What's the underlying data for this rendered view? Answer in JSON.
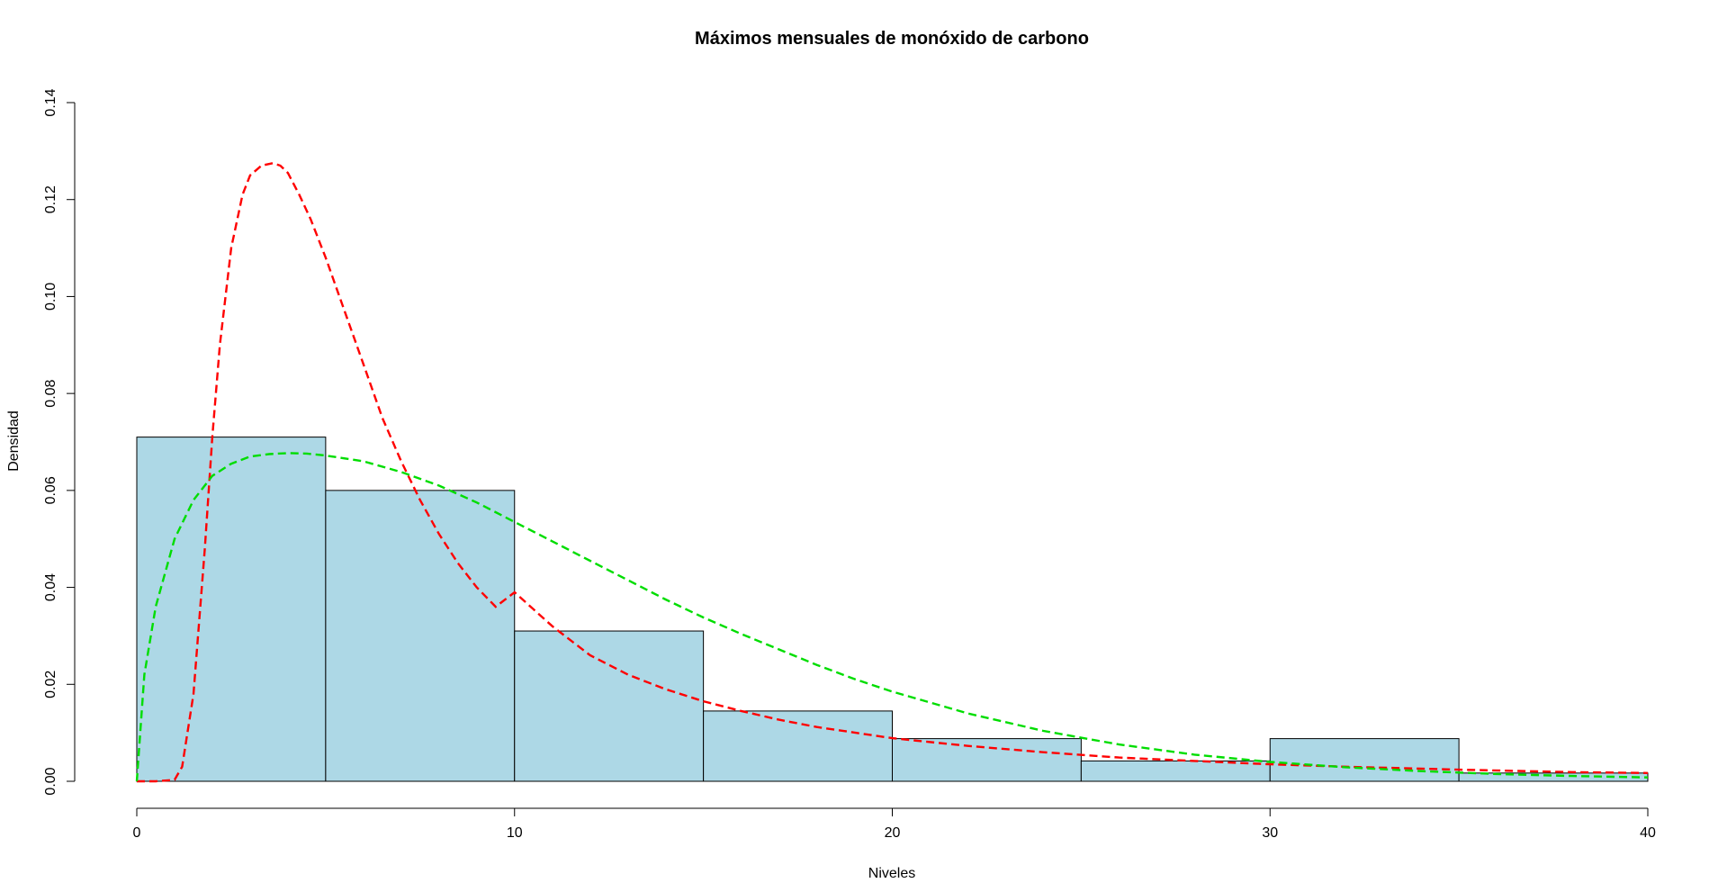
{
  "chart_data": {
    "type": "bar",
    "title": "Máximos mensuales de monóxido de carbono",
    "xlabel": "Niveles",
    "ylabel": "Densidad",
    "xlim": [
      0,
      40
    ],
    "ylim": [
      0,
      0.14
    ],
    "x_ticks": [
      0,
      10,
      20,
      30,
      40
    ],
    "y_ticks": [
      0.0,
      0.02,
      0.04,
      0.06,
      0.08,
      0.1,
      0.12,
      0.14
    ],
    "x_tick_labels": [
      "0",
      "10",
      "20",
      "30",
      "40"
    ],
    "y_tick_labels": [
      "0.00",
      "0.02",
      "0.04",
      "0.06",
      "0.08",
      "0.10",
      "0.12",
      "0.14"
    ],
    "bar_color": "#ADD8E6",
    "bins": [
      {
        "x0": 0,
        "x1": 5,
        "density": 0.071
      },
      {
        "x0": 5,
        "x1": 10,
        "density": 0.06
      },
      {
        "x0": 10,
        "x1": 15,
        "density": 0.031
      },
      {
        "x0": 15,
        "x1": 20,
        "density": 0.0145
      },
      {
        "x0": 20,
        "x1": 25,
        "density": 0.0088
      },
      {
        "x0": 25,
        "x1": 30,
        "density": 0.0042
      },
      {
        "x0": 30,
        "x1": 35,
        "density": 0.0088
      },
      {
        "x0": 35,
        "x1": 40,
        "density": 0.0017
      }
    ],
    "series": [
      {
        "color": "#FF0000",
        "line_style": "dashed",
        "x": [
          0,
          0.5,
          1,
          1.2,
          1.5,
          1.8,
          2,
          2.2,
          2.5,
          2.8,
          3,
          3.3,
          3.6,
          3.8,
          4,
          4.3,
          4.6,
          5,
          5.5,
          6,
          6.5,
          7,
          7.5,
          8,
          8.5,
          9,
          9.5,
          10,
          11,
          12,
          13,
          14,
          15,
          16,
          17,
          18,
          20,
          22,
          24,
          26,
          28,
          30,
          32,
          35,
          38,
          40
        ],
        "y": [
          0,
          0,
          0.0003,
          0.003,
          0.018,
          0.048,
          0.071,
          0.09,
          0.11,
          0.121,
          0.125,
          0.127,
          0.1275,
          0.127,
          0.1255,
          0.121,
          0.116,
          0.108,
          0.097,
          0.086,
          0.075,
          0.066,
          0.058,
          0.051,
          0.045,
          0.04,
          0.036,
          0.039,
          0.032,
          0.026,
          0.022,
          0.019,
          0.0165,
          0.0145,
          0.0127,
          0.0112,
          0.0089,
          0.0073,
          0.006,
          0.0049,
          0.0042,
          0.0035,
          0.003,
          0.0024,
          0.0019,
          0.0017
        ]
      },
      {
        "color": "#00DD00",
        "line_style": "dashed",
        "x": [
          0,
          0.2,
          0.5,
          1,
          1.5,
          2,
          2.5,
          3,
          3.5,
          4,
          4.5,
          5,
          6,
          7,
          8,
          9,
          10,
          11,
          12,
          13,
          14,
          15,
          16,
          17,
          18,
          19,
          20,
          22,
          24,
          26,
          28,
          30,
          32,
          34,
          36,
          38,
          40
        ],
        "y": [
          0,
          0.022,
          0.036,
          0.05,
          0.058,
          0.063,
          0.0655,
          0.067,
          0.0675,
          0.0677,
          0.0676,
          0.0672,
          0.066,
          0.0638,
          0.061,
          0.0575,
          0.0535,
          0.0495,
          0.0455,
          0.0415,
          0.0375,
          0.0338,
          0.0304,
          0.0272,
          0.024,
          0.0211,
          0.0185,
          0.014,
          0.0104,
          0.0076,
          0.0055,
          0.004,
          0.0029,
          0.0021,
          0.0015,
          0.0011,
          0.0008
        ]
      }
    ]
  }
}
